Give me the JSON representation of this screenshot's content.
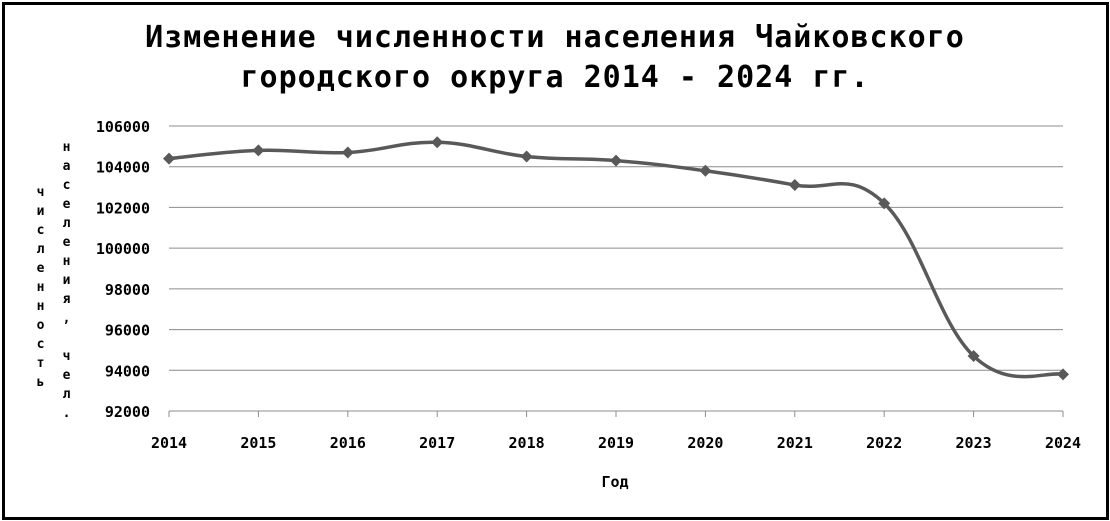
{
  "chart_data": {
    "type": "line",
    "title_line1": "Изменение численности населения Чайковского",
    "title_line2": "городского округа 2014 - 2024 гг.",
    "xlabel": "Год",
    "ylabel_line1": "численность",
    "ylabel_line2": "населения, чел.",
    "categories": [
      "2014",
      "2015",
      "2016",
      "2017",
      "2018",
      "2019",
      "2020",
      "2021",
      "2022",
      "2023",
      "2024"
    ],
    "series": [
      {
        "values": [
          104400,
          104800,
          104700,
          105200,
          104500,
          104300,
          103800,
          103100,
          102200,
          94700,
          93800
        ]
      }
    ],
    "ylim": [
      92000,
      106000
    ],
    "yticks": [
      92000,
      94000,
      96000,
      98000,
      100000,
      102000,
      104000,
      106000
    ],
    "grid": true,
    "smooth": true,
    "marker": "diamond",
    "line_color": "#595959"
  }
}
